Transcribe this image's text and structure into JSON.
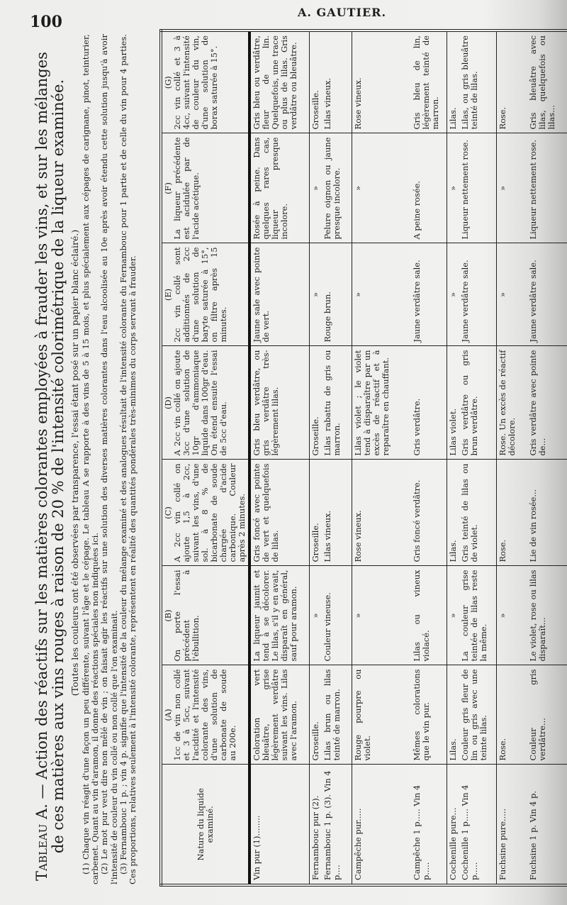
{
  "header": {
    "page_number": "100",
    "running_head": "A. GAUTIER."
  },
  "title": {
    "label": "Tableau A.",
    "text": "— Action des réactifs sur les matières colorantes employées à frauder les vins, et sur les mélanges de ces matières aux vins rouges à raison de 20 % de l'intensité colorimétrique de la liqueur examinée.",
    "subtitle": "(Toutes les couleurs ont été observées par transparence, l'essai étant posé sur un papier blanc éclairé.)"
  },
  "footnotes": [
    "(1) Chaque vin réagit d'une façon un peu différente, suivant l'âge et le cépage. Le tableau A se rapporte à des vins de 5 à 15 mois, et plus spécialement aux cépages de carignane, pinot, teinturier, carbenet. Quant au vin d'aramon, il donne des réactions spéciales non indiquées ici.",
    "(2) Le mot pur veut dire non mêlé de vin ; on faisait agir les réactifs sur une solution des diverses matières colorantes dans l'eau alcoolisée au 10e après avoir étendu cette solution jusqu'à avoir l'intensité de couleur du vin collé ou non collé que l'on examinait.",
    "(3) Fernambouc 1 p. ; vin 4 p. signifie que l'intensité de la couleur du mélange examiné et des analogues résultait de l'intensité colorante du Fernambouc pour 1 partie et de celle du vin pour 4 parties. Ces proportions, relatives seulement à l'intensité colorante, représentent en réalité des quantités pondérales très-minimes du corps servant à frauder."
  ],
  "table": {
    "label_header": "Nature du liquide examiné.",
    "columns": [
      {
        "letter": "(A)",
        "text": "1cc de vin non collé et 3 à 5cc, suivant l'acidité et l'intensité colorante des vins, d'une solution de carbonate de soude au 200e."
      },
      {
        "letter": "(B)",
        "text": "On porte l'essai précédent à l'ébullition."
      },
      {
        "letter": "(C)",
        "text": "A 2cc vin collé on ajoute 1,5 à 2cc, suivant les vins, d'une sol. à 8 % de bicarbonate de soude chargée d'acide carbonique. Couleur après 2 minutes."
      },
      {
        "letter": "(D)",
        "text": "A 2cc vin collé on ajoute 3cc d'une solution de 10gr d'ammoniaque liquide dans 100gr d'eau. On étend ensuite l'essai de 5cc d'eau."
      },
      {
        "letter": "(E)",
        "text": "2cc vin collé sont additionnés de 2cc d'une solution de baryte saturée à 15°, on filtre après 15 minutes."
      },
      {
        "letter": "(F)",
        "text": "La liqueur précédente est acidulée par de l'acide acétique."
      },
      {
        "letter": "(G)",
        "text": "2cc vin collé et 3 à 4cc, suivant l'intensité de couleur du vin, d'une solution de borax saturée à 15°."
      }
    ],
    "rows": [
      {
        "label": "Vin pur (1)........",
        "cells": [
          "Coloration vert bleuâtre, grise légèrement verdâtre suivant les vins. Lilas avec l'aramon.",
          "La liqueur jaunit et tend à se décolorer. Le lilas, s'il y en avait, disparaît en général, sauf pour aramon.",
          "Gris foncé avec pointe de vert et quelquefois de lilas.",
          "Gris bleu verdâtre, ou gris verdâtre très-légèrement lilas.",
          "Jaune sale avec pointe de vert.",
          "Rosée à peine. Dans quelques rares cas, liqueur presque incolore.",
          "Gris bleu ou verdâtre, fleur de lin. Quelquefois, une trace ou plus de lilas. Gris verdâtre ou bleuâtre."
        ]
      },
      {
        "label": "Fernambouc pur (2).",
        "cells": [
          "Groseille.",
          "»",
          "Groseille.",
          "Groseille.",
          "»",
          "»",
          "Groseille."
        ]
      },
      {
        "label": "Fernambouc 1 p. (3). Vin 4 p....",
        "cells": [
          "Lilas brun ou lilas teinté de marron.",
          "Couleur vineuse.",
          "Lilas vineux.",
          "Lilas rabattu de gris ou marron.",
          "Rouge brun.",
          "Pelure oignon ou jaune presque incolore.",
          "Lilas vineux."
        ]
      },
      {
        "label": "Campêche pur.....",
        "cells": [
          "Rouge pourpre ou violet.",
          "»",
          "Rose vineux.",
          "Lilas violet ; le violet tend à disparaître par un excès de réactif et à reparaître en chauffant.",
          "»",
          "»",
          "Rose vineux."
        ]
      },
      {
        "label": "Campêche 1 p..... Vin 4 p.....",
        "cells": [
          "Mêmes colorations que le vin pur.",
          "Lilas ou vineux violacé.",
          "Gris foncé verdâtre.",
          "Gris verdâtre.",
          "Jaune verdâtre sale.",
          "A peine rosée.",
          "Gris bleu de lin, légèrement teinté de marron."
        ]
      },
      {
        "label": "Cochenille pure...",
        "cells": [
          "Lilas.",
          "»",
          "Lilas.",
          "Lilas violet.",
          "»",
          "»",
          "Lilas."
        ]
      },
      {
        "label": "Cochenille 1 p..... Vin 4 p.....",
        "cells": [
          "Couleur gris fleur de lin ou gris avec une teinte lilas.",
          "La couleur grise teintée de lilas reste la même.",
          "Gris teinté de lilas ou de violet.",
          "Gris verdâtre ou gris brun verdâtre.",
          "Jaune verdâtre sale.",
          "Liqueur nettement rose.",
          "Lilas, ou gris bleuâtre teinté de lilas."
        ]
      },
      {
        "label": "Fuchsine pure.....",
        "cells": [
          "Rose.",
          "»",
          "Rose.",
          "Rose. Un excès de réactif décolore.",
          "»",
          "»",
          "Rose."
        ]
      },
      {
        "label": "Fuchsine 1 p. Vin 4 p.",
        "cells": [
          "Couleur gris verdâtre...",
          "Le violet, rose ou lilas disparaît...",
          "Lie de vin rosée...",
          "Gris verdâtre avec pointe de...",
          "Jaune verdâtre sale.",
          "Liqueur nettement rose.",
          "Gris bleuâtre avec lilas, quelquefois ou lilas..."
        ]
      }
    ]
  }
}
